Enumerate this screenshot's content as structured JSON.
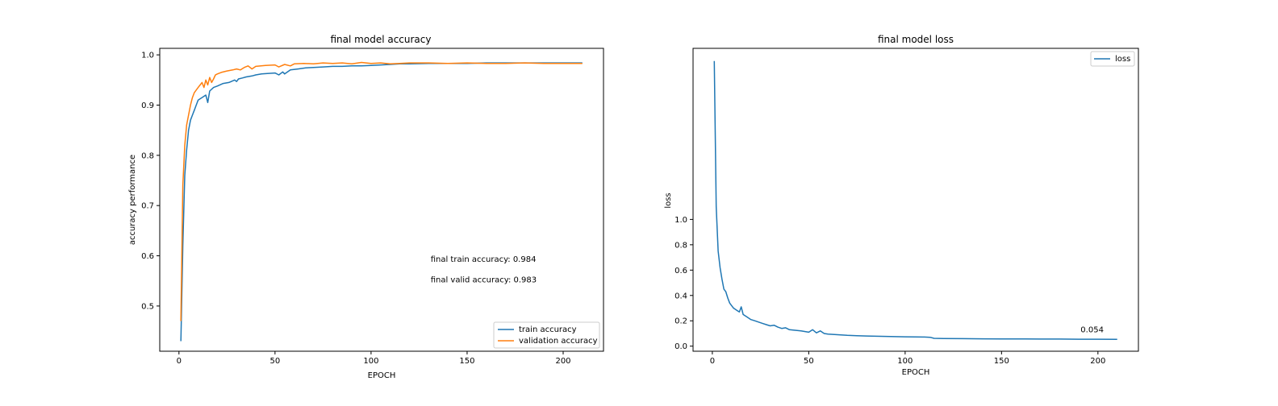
{
  "chart_data": [
    {
      "type": "line",
      "title": "final model accuracy",
      "xlabel": "EPOCH",
      "ylabel": "accuracy performance",
      "xlim": [
        -10,
        221
      ],
      "ylim": [
        0.41,
        1.013
      ],
      "xticks": [
        0,
        50,
        100,
        150,
        200
      ],
      "yticks": [
        0.5,
        0.6,
        0.7,
        0.8,
        0.9,
        1.0
      ],
      "ytick_labels": [
        "0.5",
        "0.6",
        "0.7",
        "0.8",
        "0.9",
        "1.0"
      ],
      "grid": false,
      "legend": "bottom-right",
      "annotations": [
        {
          "text": "final train accuracy: 0.984",
          "x": 131,
          "y": 0.588
        },
        {
          "text": "final valid accuracy: 0.983",
          "x": 131,
          "y": 0.547
        }
      ],
      "series": [
        {
          "name": "train accuracy",
          "color": "#1f77b4",
          "x": [
            1,
            2,
            3,
            4,
            5,
            6,
            7,
            8,
            9,
            10,
            12,
            14,
            15,
            16,
            18,
            20,
            23,
            26,
            29,
            30,
            31,
            33,
            35,
            38,
            40,
            43,
            46,
            50,
            52,
            54,
            55,
            58,
            62,
            66,
            70,
            75,
            80,
            85,
            90,
            95,
            100,
            105,
            110,
            115,
            120,
            130,
            140,
            150,
            160,
            170,
            180,
            190,
            200,
            210
          ],
          "y": [
            0.43,
            0.62,
            0.76,
            0.81,
            0.85,
            0.87,
            0.88,
            0.89,
            0.9,
            0.91,
            0.915,
            0.92,
            0.905,
            0.928,
            0.935,
            0.938,
            0.943,
            0.945,
            0.95,
            0.947,
            0.952,
            0.954,
            0.956,
            0.958,
            0.96,
            0.962,
            0.963,
            0.964,
            0.96,
            0.966,
            0.962,
            0.97,
            0.972,
            0.974,
            0.975,
            0.976,
            0.977,
            0.977,
            0.978,
            0.978,
            0.979,
            0.98,
            0.981,
            0.982,
            0.982,
            0.983,
            0.983,
            0.983,
            0.984,
            0.984,
            0.984,
            0.984,
            0.984,
            0.984
          ]
        },
        {
          "name": "validation accuracy",
          "color": "#ff7f0e",
          "x": [
            1,
            2,
            3,
            4,
            5,
            6,
            7,
            8,
            9,
            10,
            11,
            12,
            13,
            14,
            15,
            16,
            17,
            18,
            19,
            20,
            22,
            25,
            28,
            30,
            32,
            34,
            36,
            38,
            40,
            45,
            50,
            52,
            55,
            58,
            60,
            65,
            70,
            75,
            80,
            85,
            90,
            95,
            100,
            105,
            110,
            115,
            120,
            130,
            140,
            150,
            160,
            170,
            180,
            190,
            200,
            210
          ],
          "y": [
            0.47,
            0.74,
            0.82,
            0.86,
            0.88,
            0.9,
            0.915,
            0.925,
            0.93,
            0.935,
            0.94,
            0.945,
            0.935,
            0.95,
            0.94,
            0.955,
            0.945,
            0.952,
            0.96,
            0.962,
            0.965,
            0.968,
            0.97,
            0.972,
            0.97,
            0.975,
            0.978,
            0.972,
            0.977,
            0.979,
            0.98,
            0.976,
            0.981,
            0.978,
            0.982,
            0.983,
            0.982,
            0.984,
            0.983,
            0.984,
            0.982,
            0.985,
            0.983,
            0.984,
            0.982,
            0.983,
            0.984,
            0.984,
            0.983,
            0.984,
            0.983,
            0.983,
            0.984,
            0.983,
            0.983,
            0.983
          ]
        }
      ]
    },
    {
      "type": "line",
      "title": "final model loss",
      "xlabel": "EPOCH",
      "ylabel": "loss",
      "xlim": [
        -10,
        221
      ],
      "ylim": [
        -0.04,
        2.35
      ],
      "xticks": [
        0,
        50,
        100,
        150,
        200
      ],
      "yticks": [
        0.0,
        0.2,
        0.4,
        0.6,
        0.8,
        1.0
      ],
      "ytick_labels": [
        "0.0",
        "0.2",
        "0.4",
        "0.6",
        "0.8",
        "1.0"
      ],
      "grid": false,
      "legend": "top-right",
      "annotations": [
        {
          "text": "0.054",
          "x": 191,
          "y": 0.11
        }
      ],
      "series": [
        {
          "name": "loss",
          "color": "#1f77b4",
          "x": [
            1,
            2,
            3,
            4,
            5,
            6,
            7,
            8,
            9,
            10,
            11,
            12,
            13,
            14,
            15,
            16,
            18,
            20,
            22,
            24,
            26,
            28,
            30,
            32,
            34,
            36,
            38,
            40,
            43,
            46,
            50,
            52,
            54,
            56,
            58,
            60,
            65,
            70,
            75,
            80,
            85,
            90,
            95,
            100,
            105,
            110,
            113,
            115,
            120,
            130,
            140,
            150,
            160,
            170,
            180,
            190,
            200,
            210
          ],
          "y": [
            2.25,
            1.1,
            0.75,
            0.62,
            0.53,
            0.45,
            0.43,
            0.38,
            0.34,
            0.32,
            0.3,
            0.29,
            0.28,
            0.27,
            0.31,
            0.25,
            0.23,
            0.21,
            0.2,
            0.19,
            0.18,
            0.17,
            0.16,
            0.165,
            0.15,
            0.14,
            0.145,
            0.13,
            0.125,
            0.12,
            0.11,
            0.13,
            0.105,
            0.12,
            0.1,
            0.095,
            0.09,
            0.085,
            0.082,
            0.08,
            0.078,
            0.077,
            0.075,
            0.074,
            0.073,
            0.072,
            0.07,
            0.062,
            0.06,
            0.059,
            0.058,
            0.057,
            0.057,
            0.056,
            0.056,
            0.055,
            0.055,
            0.054
          ]
        }
      ]
    }
  ]
}
